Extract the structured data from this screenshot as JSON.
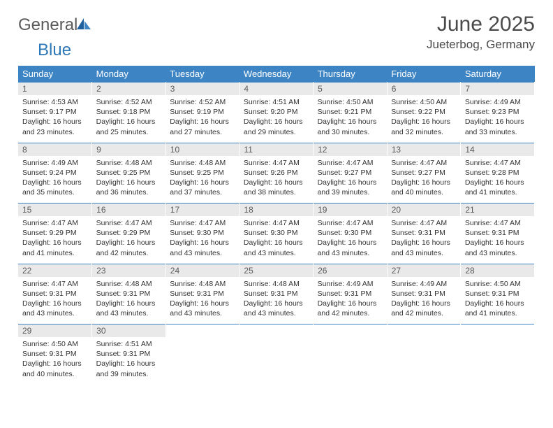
{
  "brand": {
    "word1": "General",
    "word2": "Blue"
  },
  "title": "June 2025",
  "location": "Jueterbog, Germany",
  "colors": {
    "header_bg": "#3d84c4",
    "header_text": "#ffffff",
    "daynum_bg": "#e9e9e9",
    "daynum_text": "#5a5a5a",
    "border": "#3d84c4",
    "body_text": "#333333",
    "brand_gray": "#5a5a5a",
    "brand_blue": "#2f78b7"
  },
  "weekdays": [
    "Sunday",
    "Monday",
    "Tuesday",
    "Wednesday",
    "Thursday",
    "Friday",
    "Saturday"
  ],
  "weeks": [
    [
      {
        "n": "1",
        "sr": "4:53 AM",
        "ss": "9:17 PM",
        "dl": "16 hours and 23 minutes."
      },
      {
        "n": "2",
        "sr": "4:52 AM",
        "ss": "9:18 PM",
        "dl": "16 hours and 25 minutes."
      },
      {
        "n": "3",
        "sr": "4:52 AM",
        "ss": "9:19 PM",
        "dl": "16 hours and 27 minutes."
      },
      {
        "n": "4",
        "sr": "4:51 AM",
        "ss": "9:20 PM",
        "dl": "16 hours and 29 minutes."
      },
      {
        "n": "5",
        "sr": "4:50 AM",
        "ss": "9:21 PM",
        "dl": "16 hours and 30 minutes."
      },
      {
        "n": "6",
        "sr": "4:50 AM",
        "ss": "9:22 PM",
        "dl": "16 hours and 32 minutes."
      },
      {
        "n": "7",
        "sr": "4:49 AM",
        "ss": "9:23 PM",
        "dl": "16 hours and 33 minutes."
      }
    ],
    [
      {
        "n": "8",
        "sr": "4:49 AM",
        "ss": "9:24 PM",
        "dl": "16 hours and 35 minutes."
      },
      {
        "n": "9",
        "sr": "4:48 AM",
        "ss": "9:25 PM",
        "dl": "16 hours and 36 minutes."
      },
      {
        "n": "10",
        "sr": "4:48 AM",
        "ss": "9:25 PM",
        "dl": "16 hours and 37 minutes."
      },
      {
        "n": "11",
        "sr": "4:47 AM",
        "ss": "9:26 PM",
        "dl": "16 hours and 38 minutes."
      },
      {
        "n": "12",
        "sr": "4:47 AM",
        "ss": "9:27 PM",
        "dl": "16 hours and 39 minutes."
      },
      {
        "n": "13",
        "sr": "4:47 AM",
        "ss": "9:27 PM",
        "dl": "16 hours and 40 minutes."
      },
      {
        "n": "14",
        "sr": "4:47 AM",
        "ss": "9:28 PM",
        "dl": "16 hours and 41 minutes."
      }
    ],
    [
      {
        "n": "15",
        "sr": "4:47 AM",
        "ss": "9:29 PM",
        "dl": "16 hours and 41 minutes."
      },
      {
        "n": "16",
        "sr": "4:47 AM",
        "ss": "9:29 PM",
        "dl": "16 hours and 42 minutes."
      },
      {
        "n": "17",
        "sr": "4:47 AM",
        "ss": "9:30 PM",
        "dl": "16 hours and 43 minutes."
      },
      {
        "n": "18",
        "sr": "4:47 AM",
        "ss": "9:30 PM",
        "dl": "16 hours and 43 minutes."
      },
      {
        "n": "19",
        "sr": "4:47 AM",
        "ss": "9:30 PM",
        "dl": "16 hours and 43 minutes."
      },
      {
        "n": "20",
        "sr": "4:47 AM",
        "ss": "9:31 PM",
        "dl": "16 hours and 43 minutes."
      },
      {
        "n": "21",
        "sr": "4:47 AM",
        "ss": "9:31 PM",
        "dl": "16 hours and 43 minutes."
      }
    ],
    [
      {
        "n": "22",
        "sr": "4:47 AM",
        "ss": "9:31 PM",
        "dl": "16 hours and 43 minutes."
      },
      {
        "n": "23",
        "sr": "4:48 AM",
        "ss": "9:31 PM",
        "dl": "16 hours and 43 minutes."
      },
      {
        "n": "24",
        "sr": "4:48 AM",
        "ss": "9:31 PM",
        "dl": "16 hours and 43 minutes."
      },
      {
        "n": "25",
        "sr": "4:48 AM",
        "ss": "9:31 PM",
        "dl": "16 hours and 43 minutes."
      },
      {
        "n": "26",
        "sr": "4:49 AM",
        "ss": "9:31 PM",
        "dl": "16 hours and 42 minutes."
      },
      {
        "n": "27",
        "sr": "4:49 AM",
        "ss": "9:31 PM",
        "dl": "16 hours and 42 minutes."
      },
      {
        "n": "28",
        "sr": "4:50 AM",
        "ss": "9:31 PM",
        "dl": "16 hours and 41 minutes."
      }
    ],
    [
      {
        "n": "29",
        "sr": "4:50 AM",
        "ss": "9:31 PM",
        "dl": "16 hours and 40 minutes."
      },
      {
        "n": "30",
        "sr": "4:51 AM",
        "ss": "9:31 PM",
        "dl": "16 hours and 39 minutes."
      },
      null,
      null,
      null,
      null,
      null
    ]
  ],
  "labels": {
    "sunrise": "Sunrise: ",
    "sunset": "Sunset: ",
    "daylight": "Daylight: "
  }
}
